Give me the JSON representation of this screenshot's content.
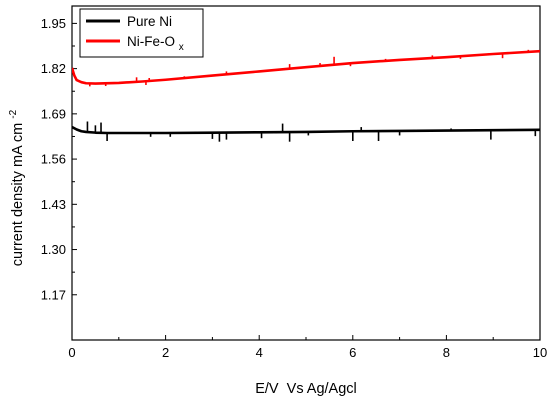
{
  "chart_data": {
    "type": "line",
    "xlabel": "E/V  Vs Ag/Agcl",
    "ylabel": "current density mA cm",
    "ylabel_superscript": "-2",
    "xlim": [
      0,
      10
    ],
    "ylim": [
      1.04,
      2.0
    ],
    "x_ticks": [
      0,
      2,
      4,
      6,
      8,
      10
    ],
    "x_tick_labels": [
      "0",
      "2",
      "4",
      "6",
      "8",
      "10"
    ],
    "y_ticks": [
      1.17,
      1.3,
      1.43,
      1.56,
      1.69,
      1.82,
      1.95
    ],
    "y_tick_labels": [
      "1.17",
      "1.30",
      "1.43",
      "1.56",
      "1.69",
      "1.82",
      "1.95"
    ],
    "grid": false,
    "legend_position": "top-left",
    "series": [
      {
        "name": "Pure Ni",
        "color": "#000000",
        "x": [
          0,
          0.1,
          0.2,
          0.3,
          0.5,
          0.75,
          1,
          2,
          3,
          4,
          5,
          6,
          7,
          8,
          9,
          10
        ],
        "y": [
          1.652,
          1.645,
          1.64,
          1.638,
          1.636,
          1.635,
          1.635,
          1.635,
          1.636,
          1.637,
          1.638,
          1.64,
          1.641,
          1.642,
          1.643,
          1.644
        ],
        "spikes": [
          {
            "x": 0.33,
            "y": 1.668
          },
          {
            "x": 0.5,
            "y": 1.657
          },
          {
            "x": 0.62,
            "y": 1.665
          },
          {
            "x": 0.75,
            "y": 1.612
          },
          {
            "x": 1.68,
            "y": 1.624
          },
          {
            "x": 2.1,
            "y": 1.624
          },
          {
            "x": 3.0,
            "y": 1.618
          },
          {
            "x": 3.15,
            "y": 1.61
          },
          {
            "x": 3.3,
            "y": 1.616
          },
          {
            "x": 4.05,
            "y": 1.62
          },
          {
            "x": 4.5,
            "y": 1.662
          },
          {
            "x": 4.65,
            "y": 1.61
          },
          {
            "x": 5.05,
            "y": 1.628
          },
          {
            "x": 6.0,
            "y": 1.612
          },
          {
            "x": 6.18,
            "y": 1.652
          },
          {
            "x": 6.55,
            "y": 1.612
          },
          {
            "x": 7.0,
            "y": 1.628
          },
          {
            "x": 8.1,
            "y": 1.648
          },
          {
            "x": 8.95,
            "y": 1.616
          },
          {
            "x": 9.9,
            "y": 1.626
          }
        ]
      },
      {
        "name": "Ni-Fe-O",
        "name_subscript": "x",
        "color": "#ff0000",
        "x": [
          0,
          0.05,
          0.1,
          0.2,
          0.3,
          0.5,
          1,
          1.5,
          2,
          3,
          4,
          5,
          6,
          7,
          8,
          9,
          10
        ],
        "y": [
          1.822,
          1.8,
          1.787,
          1.781,
          1.778,
          1.777,
          1.779,
          1.783,
          1.788,
          1.8,
          1.812,
          1.824,
          1.836,
          1.845,
          1.853,
          1.862,
          1.87
        ],
        "spikes": [
          {
            "x": 0.38,
            "y": 1.769
          },
          {
            "x": 0.72,
            "y": 1.77
          },
          {
            "x": 1.38,
            "y": 1.795
          },
          {
            "x": 1.58,
            "y": 1.773
          },
          {
            "x": 1.65,
            "y": 1.793
          },
          {
            "x": 2.4,
            "y": 1.798
          },
          {
            "x": 3.3,
            "y": 1.812
          },
          {
            "x": 4.0,
            "y": 1.812
          },
          {
            "x": 4.65,
            "y": 1.833
          },
          {
            "x": 5.3,
            "y": 1.836
          },
          {
            "x": 5.6,
            "y": 1.854
          },
          {
            "x": 5.95,
            "y": 1.827
          },
          {
            "x": 6.7,
            "y": 1.848
          },
          {
            "x": 7.7,
            "y": 1.858
          },
          {
            "x": 8.3,
            "y": 1.848
          },
          {
            "x": 8.9,
            "y": 1.864
          },
          {
            "x": 9.2,
            "y": 1.85
          },
          {
            "x": 9.75,
            "y": 1.874
          }
        ]
      }
    ]
  }
}
